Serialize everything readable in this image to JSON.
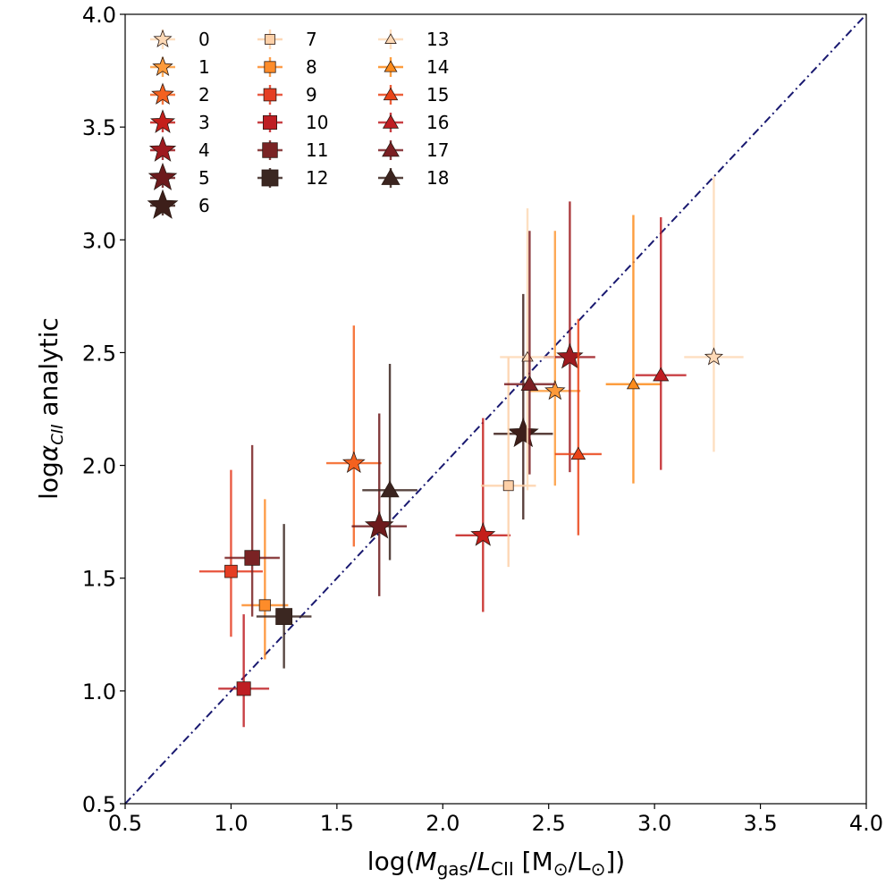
{
  "chart_data": {
    "type": "scatter",
    "title": "",
    "xlabel": "log(M_gas/L_CII [M⊙/L⊙])",
    "xlabel_parts": {
      "pre": "log(",
      "m": "M",
      "m_sub": "gas",
      "slash": "/",
      "l": "L",
      "l_sub": "CII",
      "unit": " [M",
      "sun1": "⊙",
      "mid": "/L",
      "sun2": "⊙",
      "post": "])"
    },
    "ylabel": "logα_CII analytic",
    "ylabel_parts": {
      "pre": "log",
      "alpha": "α",
      "sub": "CII",
      "post": " analytic"
    },
    "xlim": [
      0.5,
      4.0
    ],
    "ylim": [
      0.5,
      4.0
    ],
    "xticks": [
      "0.5",
      "1.0",
      "1.5",
      "2.0",
      "2.5",
      "3.0",
      "3.5",
      "4.0"
    ],
    "yticks": [
      "0.5",
      "1.0",
      "1.5",
      "2.0",
      "2.5",
      "3.0",
      "3.5",
      "4.0"
    ],
    "reference_line": {
      "style": "dash-dot",
      "color": "#191970",
      "from": [
        0.5,
        0.5
      ],
      "to": [
        4.0,
        4.0
      ]
    },
    "legend": {
      "location": "upper-left",
      "columns": 3,
      "frame": false
    },
    "series": [
      {
        "name": "0",
        "marker": "star",
        "color": "#fdd9b6",
        "x": 3.28,
        "y": 2.48,
        "xerr": 0.14,
        "yerr_lo": 0.42,
        "yerr_hi": 0.8
      },
      {
        "name": "1",
        "marker": "star",
        "color": "#fd9a3a",
        "x": 2.53,
        "y": 2.33,
        "xerr": 0.12,
        "yerr_lo": 0.42,
        "yerr_hi": 0.71
      },
      {
        "name": "2",
        "marker": "star",
        "color": "#f4611f",
        "x": 1.58,
        "y": 2.01,
        "xerr": 0.13,
        "yerr_lo": 0.37,
        "yerr_hi": 0.61
      },
      {
        "name": "3",
        "marker": "star",
        "color": "#c41f1b",
        "x": 2.19,
        "y": 1.69,
        "xerr": 0.13,
        "yerr_lo": 0.34,
        "yerr_hi": 0.52
      },
      {
        "name": "4",
        "marker": "star",
        "color": "#9e1a1f",
        "x": 2.6,
        "y": 2.48,
        "xerr": 0.12,
        "yerr_lo": 0.51,
        "yerr_hi": 0.69
      },
      {
        "name": "5",
        "marker": "star",
        "color": "#6d1a1c",
        "x": 1.7,
        "y": 1.73,
        "xerr": 0.13,
        "yerr_lo": 0.31,
        "yerr_hi": 0.5
      },
      {
        "name": "6",
        "marker": "star",
        "color": "#3d1f1a",
        "x": 2.38,
        "y": 2.14,
        "xerr": 0.14,
        "yerr_lo": 0.38,
        "yerr_hi": 0.62
      },
      {
        "name": "7",
        "marker": "square",
        "color": "#fdd0a8",
        "x": 2.31,
        "y": 1.91,
        "xerr": 0.13,
        "yerr_lo": 0.36,
        "yerr_hi": 0.57
      },
      {
        "name": "8",
        "marker": "square",
        "color": "#fd8c2a",
        "x": 1.16,
        "y": 1.38,
        "xerr": 0.11,
        "yerr_lo": 0.24,
        "yerr_hi": 0.47
      },
      {
        "name": "9",
        "marker": "square",
        "color": "#e53e23",
        "x": 1.0,
        "y": 1.53,
        "xerr": 0.15,
        "yerr_lo": 0.29,
        "yerr_hi": 0.45
      },
      {
        "name": "10",
        "marker": "square",
        "color": "#be1e23",
        "x": 1.06,
        "y": 1.01,
        "xerr": 0.12,
        "yerr_lo": 0.17,
        "yerr_hi": 0.33
      },
      {
        "name": "11",
        "marker": "square",
        "color": "#7a2324",
        "x": 1.1,
        "y": 1.59,
        "xerr": 0.13,
        "yerr_lo": 0.26,
        "yerr_hi": 0.5
      },
      {
        "name": "12",
        "marker": "square",
        "color": "#3b2721",
        "x": 1.25,
        "y": 1.33,
        "xerr": 0.13,
        "yerr_lo": 0.23,
        "yerr_hi": 0.41
      },
      {
        "name": "13",
        "marker": "triangle",
        "color": "#fdd9b6",
        "x": 2.4,
        "y": 2.48,
        "xerr": 0.13,
        "yerr_lo": 0.59,
        "yerr_hi": 0.66
      },
      {
        "name": "14",
        "marker": "triangle",
        "color": "#fd8c1c",
        "x": 2.9,
        "y": 2.36,
        "xerr": 0.13,
        "yerr_lo": 0.44,
        "yerr_hi": 0.75
      },
      {
        "name": "15",
        "marker": "triangle",
        "color": "#ea4418",
        "x": 2.64,
        "y": 2.05,
        "xerr": 0.11,
        "yerr_lo": 0.36,
        "yerr_hi": 0.6
      },
      {
        "name": "16",
        "marker": "triangle",
        "color": "#c01e23",
        "x": 3.03,
        "y": 2.4,
        "xerr": 0.12,
        "yerr_lo": 0.42,
        "yerr_hi": 0.7
      },
      {
        "name": "17",
        "marker": "triangle",
        "color": "#7b1f23",
        "x": 2.41,
        "y": 2.36,
        "xerr": 0.12,
        "yerr_lo": 0.4,
        "yerr_hi": 0.68
      },
      {
        "name": "18",
        "marker": "triangle",
        "color": "#3b241f",
        "x": 1.75,
        "y": 1.89,
        "xerr": 0.13,
        "yerr_lo": 0.31,
        "yerr_hi": 0.56
      }
    ]
  }
}
